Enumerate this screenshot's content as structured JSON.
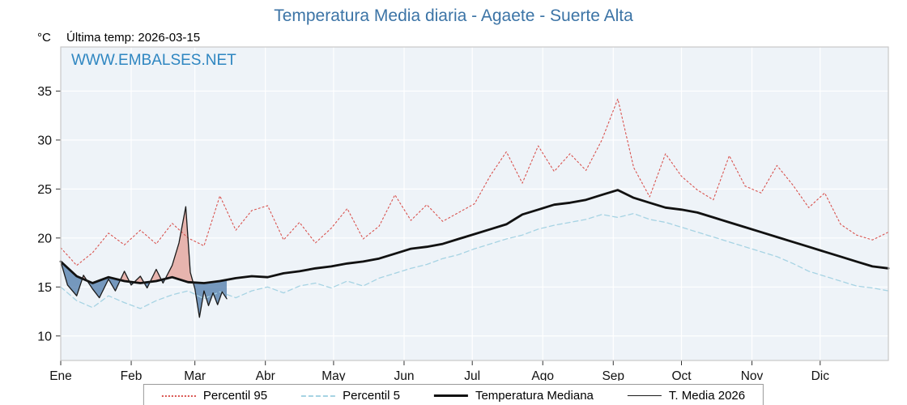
{
  "title": "Temperatura Media diaria - Agaete - Suerte Alta",
  "header": {
    "y_unit": "°C",
    "last_temp": "Última temp: 2026-03-15"
  },
  "watermark": "WWW.EMBALSES.NET",
  "colors": {
    "title": "#3c74a6",
    "watermark": "#2e86c1",
    "plot_bg": "#eef3f8",
    "grid": "#ffffff",
    "plot_border": "#c8c8c8",
    "fill_above": "rgba(224,118,100,0.5)",
    "fill_below": "rgba(66,112,164,0.7)"
  },
  "chart_data": {
    "type": "line",
    "title": "Temperatura Media diaria - Agaete - Suerte Alta",
    "xlabel": "",
    "ylabel": "°C",
    "ylim": [
      7.5,
      39.5
    ],
    "yticks": [
      10,
      15,
      20,
      25,
      30,
      35
    ],
    "x_unit": "day_of_year",
    "x_months": [
      "Ene",
      "Feb",
      "Mar",
      "Abr",
      "May",
      "Jun",
      "Jul",
      "Ago",
      "Sep",
      "Oct",
      "Nov",
      "Dic"
    ],
    "month_start_days": [
      1,
      32,
      60,
      91,
      121,
      152,
      182,
      213,
      244,
      274,
      305,
      335
    ],
    "grid": true,
    "legend_position": "bottom",
    "series": [
      {
        "name": "Percentil 95",
        "color": "#d9534f",
        "dash": "2 3",
        "width": 1.1,
        "legend_style": "dotted",
        "legend_weight": 2,
        "x": [
          1,
          8,
          15,
          22,
          29,
          36,
          43,
          50,
          57,
          64,
          71,
          78,
          85,
          92,
          99,
          106,
          113,
          120,
          127,
          134,
          141,
          148,
          155,
          162,
          169,
          176,
          183,
          190,
          197,
          204,
          211,
          218,
          225,
          232,
          239,
          246,
          253,
          260,
          267,
          274,
          281,
          288,
          295,
          302,
          309,
          316,
          323,
          330,
          337,
          344,
          351,
          358,
          365
        ],
        "values": [
          19.0,
          17.2,
          18.5,
          20.5,
          19.3,
          20.8,
          19.4,
          21.5,
          20.0,
          19.2,
          24.3,
          20.8,
          22.8,
          23.3,
          19.8,
          21.6,
          19.5,
          21.0,
          23.0,
          19.9,
          21.2,
          24.4,
          21.8,
          23.4,
          21.7,
          22.6,
          23.5,
          26.4,
          28.8,
          25.6,
          29.4,
          26.8,
          28.6,
          26.9,
          30.0,
          34.2,
          27.2,
          24.2,
          28.6,
          26.3,
          24.9,
          23.9,
          28.4,
          25.3,
          24.6,
          27.4,
          25.4,
          23.1,
          24.6,
          21.4,
          20.3,
          19.8,
          20.6
        ]
      },
      {
        "name": "Percentil 5",
        "color": "#a6d3e3",
        "dash": "6 4",
        "width": 1.3,
        "legend_style": "dashed",
        "legend_weight": 2,
        "x": [
          1,
          8,
          15,
          22,
          29,
          36,
          43,
          50,
          57,
          64,
          71,
          78,
          85,
          92,
          99,
          106,
          113,
          120,
          127,
          134,
          141,
          148,
          155,
          162,
          169,
          176,
          183,
          190,
          197,
          204,
          211,
          218,
          225,
          232,
          239,
          246,
          253,
          260,
          267,
          274,
          281,
          288,
          295,
          302,
          309,
          316,
          323,
          330,
          337,
          344,
          351,
          358,
          365
        ],
        "values": [
          15.0,
          13.6,
          12.9,
          14.1,
          13.4,
          12.8,
          13.6,
          14.2,
          14.6,
          13.8,
          14.5,
          13.9,
          14.6,
          15.0,
          14.4,
          15.1,
          15.4,
          14.9,
          15.6,
          15.1,
          15.9,
          16.4,
          16.9,
          17.3,
          17.9,
          18.3,
          18.9,
          19.4,
          19.9,
          20.3,
          20.9,
          21.3,
          21.6,
          21.9,
          22.4,
          22.1,
          22.5,
          21.9,
          21.6,
          21.1,
          20.6,
          20.1,
          19.6,
          19.1,
          18.6,
          18.1,
          17.4,
          16.6,
          16.1,
          15.6,
          15.1,
          14.9,
          14.6
        ]
      },
      {
        "name": "Temperatura Mediana",
        "color": "#111111",
        "dash": null,
        "width": 2.8,
        "legend_style": "solid",
        "legend_weight": 3,
        "x": [
          1,
          8,
          15,
          22,
          29,
          36,
          43,
          50,
          57,
          64,
          71,
          78,
          85,
          92,
          99,
          106,
          113,
          120,
          127,
          134,
          141,
          148,
          155,
          162,
          169,
          176,
          183,
          190,
          197,
          204,
          211,
          218,
          225,
          232,
          239,
          246,
          253,
          260,
          267,
          274,
          281,
          288,
          295,
          302,
          309,
          316,
          323,
          330,
          337,
          344,
          351,
          358,
          365
        ],
        "values": [
          17.6,
          16.1,
          15.4,
          16.0,
          15.6,
          15.4,
          15.6,
          16.0,
          15.5,
          15.4,
          15.6,
          15.9,
          16.1,
          16.0,
          16.4,
          16.6,
          16.9,
          17.1,
          17.4,
          17.6,
          17.9,
          18.4,
          18.9,
          19.1,
          19.4,
          19.9,
          20.4,
          20.9,
          21.4,
          22.4,
          22.9,
          23.4,
          23.6,
          23.9,
          24.4,
          24.9,
          24.1,
          23.6,
          23.1,
          22.9,
          22.6,
          22.1,
          21.6,
          21.1,
          20.6,
          20.1,
          19.6,
          19.1,
          18.6,
          18.1,
          17.6,
          17.1,
          16.9
        ]
      },
      {
        "name": "T. Media 2026",
        "color": "#1a1a1a",
        "dash": null,
        "width": 1.3,
        "legend_style": "solid",
        "legend_weight": 1,
        "x": [
          1,
          4,
          8,
          11,
          15,
          18,
          22,
          25,
          29,
          32,
          36,
          39,
          43,
          46,
          50,
          53,
          56,
          58,
          60,
          62,
          64,
          66,
          68,
          70,
          72,
          74
        ],
        "values": [
          17.6,
          15.2,
          14.1,
          16.2,
          14.8,
          13.9,
          15.8,
          14.6,
          16.6,
          15.2,
          16.1,
          14.9,
          16.8,
          15.4,
          17.2,
          19.5,
          23.2,
          16.5,
          14.8,
          11.9,
          14.6,
          13.1,
          14.4,
          13.2,
          14.5,
          13.8
        ]
      }
    ],
    "fill_between": {
      "series_a": "T. Media 2026",
      "series_b": "Temperatura Mediana",
      "above_color": "rgba(224,118,100,0.5)",
      "below_color": "rgba(66,112,164,0.7)"
    }
  }
}
